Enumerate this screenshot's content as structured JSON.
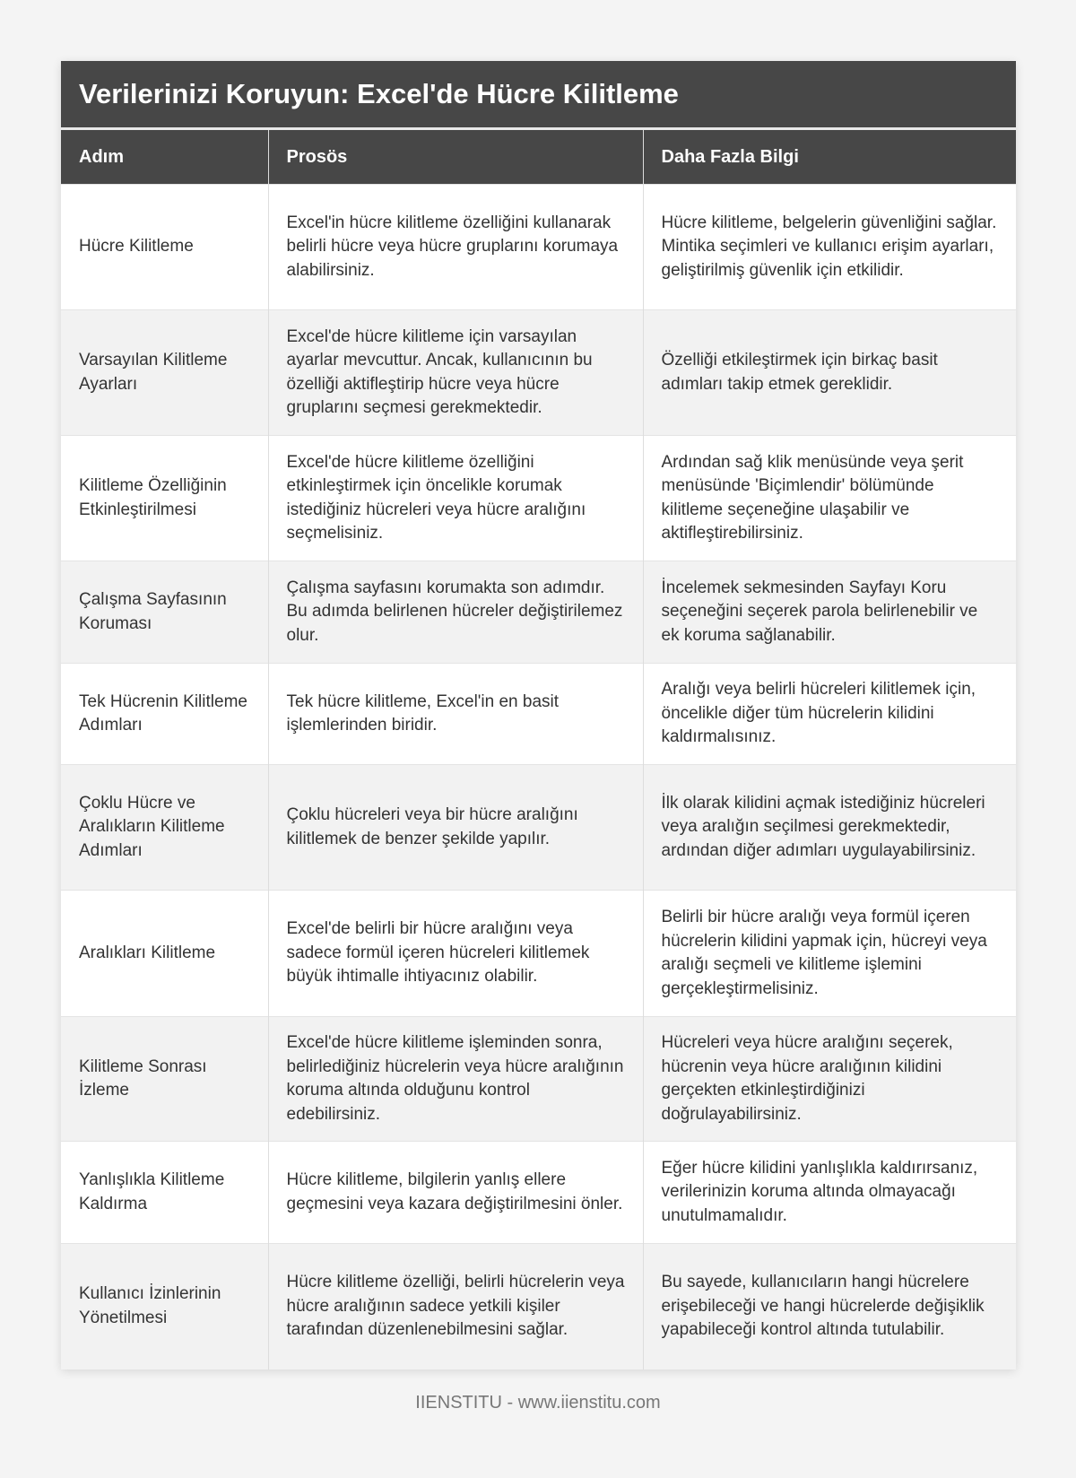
{
  "title": "Verilerinizi Koruyun: Excel'de Hücre Kilitleme",
  "headers": [
    "Adım",
    "Prosös",
    "Daha Fazla Bilgi"
  ],
  "rows": [
    [
      "Hücre Kilitleme",
      "Excel'in hücre kilitleme özelliğini kullanarak belirli hücre veya hücre gruplarını korumaya alabilirsiniz.",
      "Hücre kilitleme, belgelerin güvenliğini sağlar. Mintika seçimleri ve kullanıcı erişim ayarları, geliştirilmiş güvenlik için etkilidir."
    ],
    [
      "Varsayılan Kilitleme Ayarları",
      "Excel'de hücre kilitleme için varsayılan ayarlar mevcuttur. Ancak, kullanıcının bu özelliği aktifleştirip hücre veya hücre gruplarını seçmesi gerekmektedir.",
      "Özelliği etkileştirmek için birkaç basit adımları takip etmek gereklidir."
    ],
    [
      "Kilitleme Özelliğinin Etkinleştirilmesi",
      "Excel'de hücre kilitleme özelliğini etkinleştirmek için öncelikle korumak istediğiniz hücreleri veya hücre aralığını seçmelisiniz.",
      "Ardından sağ klik menüsünde veya şerit menüsünde 'Biçimlendir' bölümünde kilitleme seçeneğine ulaşabilir ve aktifleştirebilirsiniz."
    ],
    [
      "Çalışma Sayfasının Koruması",
      "Çalışma sayfasını korumakta son adımdır. Bu adımda belirlenen hücreler değiştirilemez olur.",
      "İncelemek sekmesinden Sayfayı Koru seçeneğini seçerek parola belirlenebilir ve ek koruma sağlanabilir."
    ],
    [
      "Tek Hücrenin Kilitleme Adımları",
      "Tek hücre kilitleme, Excel'in en basit işlemlerinden biridir.",
      "Aralığı veya belirli hücreleri kilitlemek için, öncelikle diğer tüm hücrelerin kilidini kaldırmalısınız."
    ],
    [
      "Çoklu Hücre ve Aralıkların Kilitleme Adımları",
      "Çoklu hücreleri veya bir hücre aralığını kilitlemek de benzer şekilde yapılır.",
      "İlk olarak kilidini açmak istediğiniz hücreleri veya aralığın seçilmesi gerekmektedir, ardından diğer adımları uygulayabilirsiniz."
    ],
    [
      "Aralıkları Kilitleme",
      "Excel'de belirli bir hücre aralığını veya sadece formül içeren hücreleri kilitlemek büyük ihtimalle ihtiyacınız olabilir.",
      "Belirli bir hücre aralığı veya formül içeren hücrelerin kilidini yapmak için, hücreyi veya aralığı seçmeli ve kilitleme işlemini gerçekleştirmelisiniz."
    ],
    [
      "Kilitleme Sonrası İzleme",
      "Excel'de hücre kilitleme işleminden sonra, belirlediğiniz hücrelerin veya hücre aralığının koruma altında olduğunu kontrol edebilirsiniz.",
      "Hücreleri veya hücre aralığını seçerek, hücrenin veya hücre aralığının kilidini gerçekten etkinleştirdiğinizi doğrulayabilirsiniz."
    ],
    [
      "Yanlışlıkla Kilitleme Kaldırma",
      "Hücre kilitleme, bilgilerin yanlış ellere geçmesini veya kazara değiştirilmesini önler.",
      "Eğer hücre kilidini yanlışlıkla kaldırırsanız, verilerinizin koruma altında olmayacağı unutulmamalıdır."
    ],
    [
      "Kullanıcı İzinlerinin Yönetilmesi",
      "Hücre kilitleme özelliği, belirli hücrelerin veya hücre aralığının sadece yetkili kişiler tarafından düzenlenebilmesini sağlar.",
      "Bu sayede, kullanıcıların hangi hücrelere erişebileceği ve hangi hücrelerde değişiklik yapabileceği kontrol altında tutulabilir."
    ]
  ],
  "footer": "IIENSTITU - www.iienstitu.com"
}
